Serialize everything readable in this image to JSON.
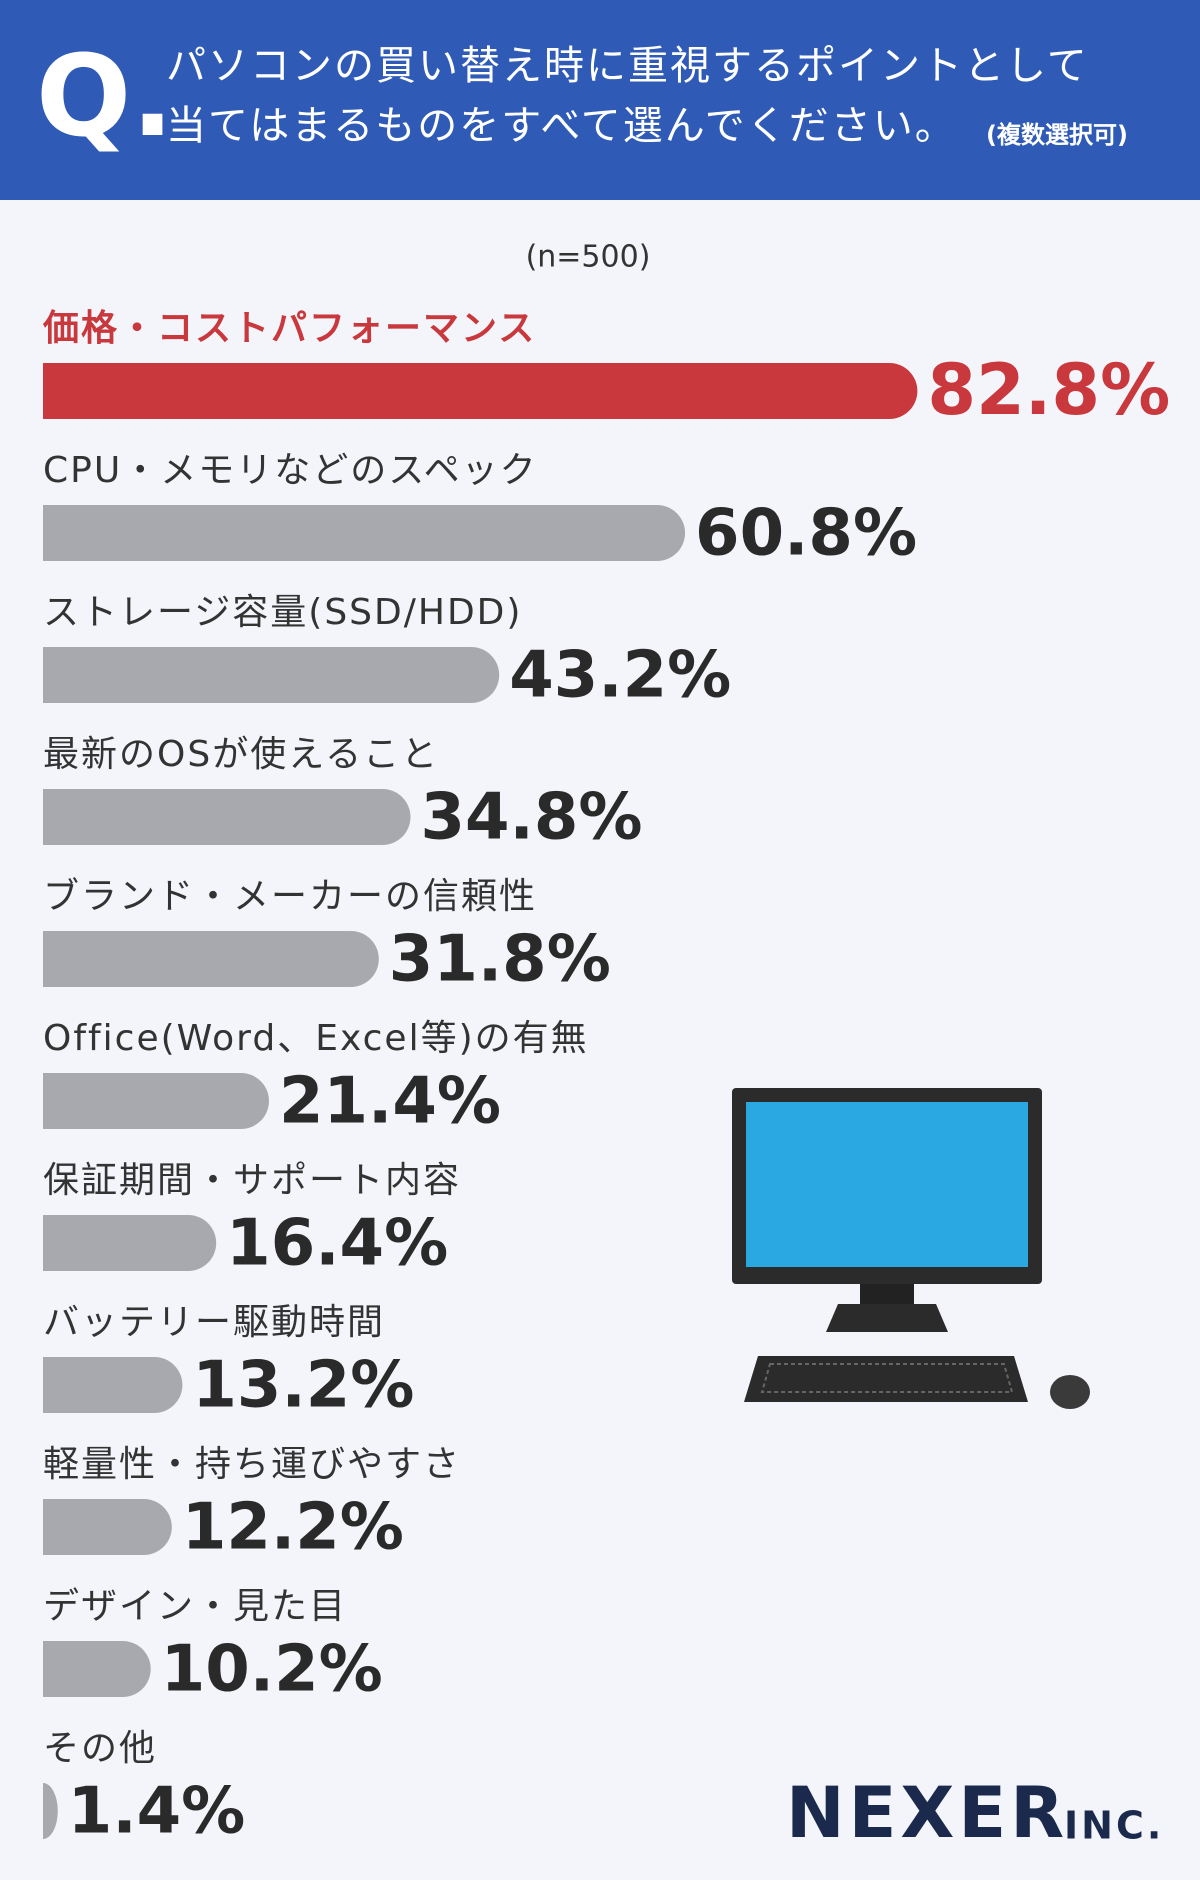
{
  "chart_data": {
    "type": "bar",
    "orientation": "horizontal",
    "q_mark": "Q.",
    "title_lines": [
      "パソコンの買い替え時に重視するポイントとして",
      "当てはまるものをすべて選んでください。"
    ],
    "note": "(複数選択可)",
    "sample": "(n=500)",
    "categories": [
      "価格・コストパフォーマンス",
      "CPU・メモリなどのスペック",
      "ストレージ容量(SSD/HDD)",
      "最新のOSが使えること",
      "ブランド・メーカーの信頼性",
      "Office(Word、Excel等)の有無",
      "保証期間・サポート内容",
      "バッテリー駆動時間",
      "軽量性・持ち運びやすさ",
      "デザイン・見た目",
      "その他"
    ],
    "values": [
      82.8,
      60.8,
      43.2,
      34.8,
      31.8,
      21.4,
      16.4,
      13.2,
      12.2,
      10.2,
      1.4
    ],
    "value_labels": [
      "82.8%",
      "60.8%",
      "43.2%",
      "34.8%",
      "31.8%",
      "21.4%",
      "16.4%",
      "13.2%",
      "12.2%",
      "10.2%",
      "1.4%"
    ],
    "color": "#a8a9ae",
    "highlight_color": "#c8383c",
    "highlight_index": 0,
    "brand": "NEXER",
    "brand_suffix": "INC."
  }
}
